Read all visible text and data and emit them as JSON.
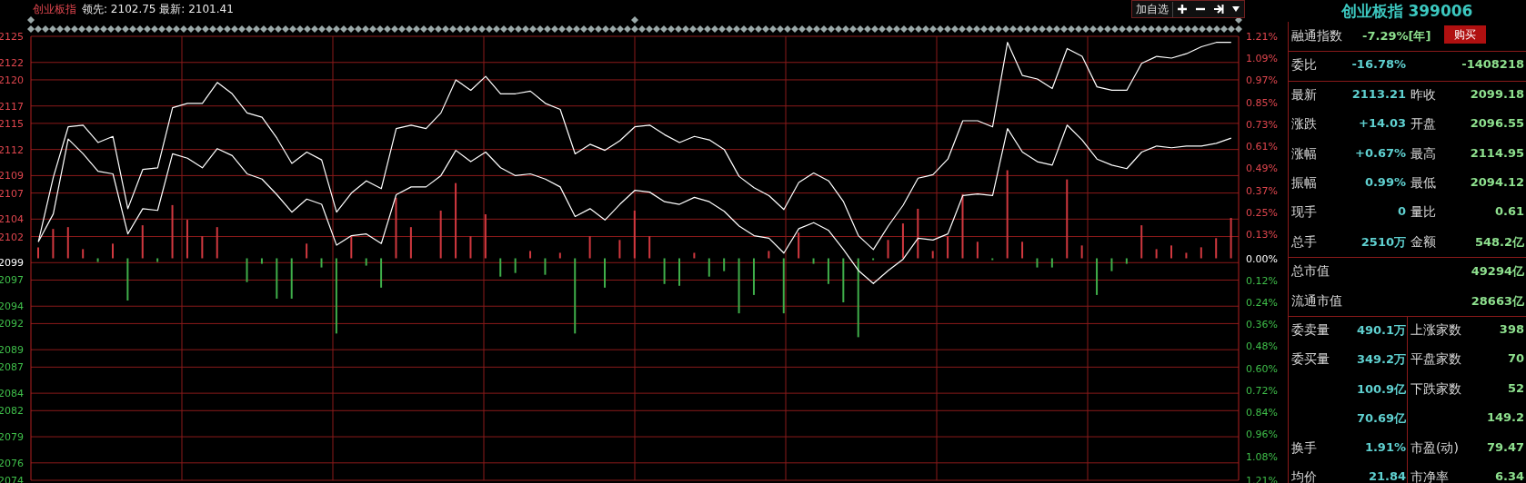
{
  "chart_data": [
    {
      "type": "line",
      "title": "创业板指",
      "subtitle": "领先: 2102.75 最新: 2101.41",
      "annotations": [
        "加自选"
      ],
      "categories": [
        null,
        null,
        null,
        null,
        null,
        null,
        null,
        null,
        null,
        null,
        null,
        null,
        null,
        null,
        null,
        null,
        null,
        null,
        null,
        null,
        null,
        null,
        null,
        null,
        null,
        null,
        null,
        null,
        null,
        null,
        null,
        null,
        null,
        null,
        null,
        null,
        null,
        null,
        null,
        null,
        null,
        null,
        null,
        null,
        null,
        null,
        null,
        null,
        null,
        null,
        null,
        null,
        null,
        null,
        null,
        null,
        null,
        null,
        null,
        null,
        null,
        null,
        null,
        null,
        null,
        null,
        null,
        null,
        null,
        null,
        null,
        null,
        null,
        null,
        null,
        null,
        null,
        null,
        null,
        null,
        null
      ],
      "series": [
        {
          "type": "line",
          "color": "#ffffff",
          "values": [
            2101.4,
            2108.8,
            2114.6,
            2114.8,
            2112.8,
            2113.5,
            2105.2,
            2109.7,
            2109.9,
            2116.8,
            2117.3,
            2117.3,
            2119.7,
            2118.4,
            2116.2,
            2115.7,
            2113.3,
            2110.4,
            2111.7,
            2110.8,
            2104.8,
            2107.0,
            2108.4,
            2107.5,
            2114.4,
            2114.8,
            2114.4,
            2116.2,
            2120.0,
            2118.8,
            2120.4,
            2118.4,
            2118.4,
            2118.7,
            2117.3,
            2116.6,
            2111.5,
            2112.6,
            2111.9,
            2113.0,
            2114.6,
            2114.8,
            2113.7,
            2112.8,
            2113.5,
            2113.1,
            2112.0,
            2108.9,
            2107.6,
            2106.7,
            2105.1,
            2108.2,
            2109.3,
            2108.4,
            2106.0,
            2102.1,
            2100.5,
            2103.2,
            2105.6,
            2108.7,
            2109.1,
            2110.9,
            2115.3,
            2115.3,
            2114.6,
            2124.3,
            2120.5,
            2120.1,
            2119.0,
            2123.6,
            2122.7,
            2119.2,
            2118.8,
            2118.8,
            2121.9,
            2122.7,
            2122.5,
            2123.0,
            2123.8,
            2124.3,
            2124.3
          ]
        },
        {
          "type": "line",
          "color": "#ffffff",
          "values": [
            2101.4,
            2104.6,
            2113.2,
            2111.5,
            2109.5,
            2109.2,
            2102.3,
            2105.2,
            2105.0,
            2111.5,
            2111.0,
            2109.9,
            2112.1,
            2111.3,
            2109.2,
            2108.6,
            2106.8,
            2104.8,
            2106.3,
            2105.7,
            2101.0,
            2102.1,
            2102.3,
            2101.2,
            2106.8,
            2107.7,
            2107.7,
            2109.0,
            2111.9,
            2110.6,
            2111.7,
            2109.9,
            2109.0,
            2109.2,
            2108.6,
            2107.7,
            2104.3,
            2105.2,
            2103.9,
            2105.7,
            2107.3,
            2107.1,
            2106.0,
            2105.7,
            2106.5,
            2106.0,
            2104.9,
            2103.2,
            2102.1,
            2101.8,
            2100.1,
            2102.9,
            2103.6,
            2102.7,
            2100.5,
            2098.1,
            2096.6,
            2098.1,
            2099.4,
            2101.8,
            2101.6,
            2102.3,
            2106.7,
            2106.9,
            2106.7,
            2114.4,
            2111.7,
            2110.6,
            2110.2,
            2114.8,
            2113.1,
            2110.9,
            2110.2,
            2109.8,
            2111.7,
            2112.4,
            2112.2,
            2112.4,
            2112.4,
            2112.7,
            2113.3
          ]
        },
        {
          "type": "bar",
          "axis": "y2",
          "values": [
            0.06,
            0.16,
            0.17,
            0.05,
            -0.02,
            0.08,
            -0.23,
            0.18,
            -0.02,
            0.29,
            0.21,
            0.12,
            0.17,
            null,
            -0.13,
            -0.03,
            -0.22,
            -0.22,
            0.08,
            -0.05,
            -0.41,
            0.12,
            -0.04,
            -0.16,
            0.33,
            0.17,
            null,
            0.26,
            0.41,
            0.12,
            0.24,
            -0.1,
            -0.08,
            0.04,
            -0.09,
            0.03,
            -0.41,
            0.12,
            -0.16,
            0.1,
            0.26,
            0.12,
            -0.14,
            -0.15,
            0.03,
            -0.1,
            -0.07,
            -0.3,
            -0.2,
            0.04,
            -0.3,
            0.14,
            -0.03,
            -0.14,
            -0.24,
            -0.43,
            -0.01,
            0.1,
            0.19,
            0.27,
            0.04,
            0.12,
            0.35,
            0.09,
            -0.01,
            0.48,
            0.09,
            -0.05,
            -0.05,
            0.43,
            0.07,
            -0.2,
            -0.07,
            -0.03,
            0.18,
            0.05,
            0.07,
            0.03,
            0.06,
            0.11,
            0.22
          ],
          "colors": [
            "#d0383f",
            "#d0383f",
            "#d0383f",
            "#d0383f",
            "#3fae4a",
            "#d0383f",
            "#3fae4a",
            "#d0383f",
            "#3fae4a",
            "#d0383f",
            "#d0383f",
            "#d0383f",
            "#d0383f",
            null,
            "#3fae4a",
            "#3fae4a",
            "#3fae4a",
            "#3fae4a",
            "#d0383f",
            "#3fae4a",
            "#3fae4a",
            "#d0383f",
            "#3fae4a",
            "#3fae4a",
            "#d0383f",
            "#d0383f",
            null,
            "#d0383f",
            "#d0383f",
            "#d0383f",
            "#d0383f",
            "#3fae4a",
            "#3fae4a",
            "#d0383f",
            "#3fae4a",
            "#d0383f",
            "#3fae4a",
            "#d0383f",
            "#3fae4a",
            "#d0383f",
            "#d0383f",
            "#d0383f",
            "#3fae4a",
            "#3fae4a",
            "#d0383f",
            "#3fae4a",
            "#3fae4a",
            "#3fae4a",
            "#3fae4a",
            "#d0383f",
            "#3fae4a",
            "#d0383f",
            "#3fae4a",
            "#3fae4a",
            "#3fae4a",
            "#3fae4a",
            "#3fae4a",
            "#d0383f",
            "#d0383f",
            "#d0383f",
            "#d0383f",
            "#d0383f",
            "#d0383f",
            "#d0383f",
            "#3fae4a",
            "#d0383f",
            "#d0383f",
            "#3fae4a",
            "#3fae4a",
            "#d0383f",
            "#d0383f",
            "#3fae4a",
            "#3fae4a",
            "#3fae4a",
            "#d0383f",
            "#d0383f",
            "#d0383f",
            "#d0383f",
            "#d0383f",
            "#d0383f",
            "#d0383f"
          ]
        }
      ],
      "ylim": [
        2074,
        2125
      ],
      "yticks": [
        2125,
        2122,
        2120,
        2117,
        2115,
        2112,
        2109,
        2107,
        2104,
        2102,
        2099,
        2097,
        2094,
        2092,
        2089,
        2087,
        2084,
        2082,
        2079,
        2076,
        2074
      ],
      "y2lim": [
        -1.21,
        1.21
      ],
      "y2ticks": [
        {
          "value": 1.21,
          "label": "1.21%"
        },
        {
          "value": 1.09,
          "label": "1.09%"
        },
        {
          "value": 0.97,
          "label": "0.97%"
        },
        {
          "value": 0.85,
          "label": "0.85%"
        },
        {
          "value": 0.73,
          "label": "0.73%"
        },
        {
          "value": 0.61,
          "label": "0.61%"
        },
        {
          "value": 0.49,
          "label": "0.49%"
        },
        {
          "value": 0.37,
          "label": "0.37%"
        },
        {
          "value": 0.25,
          "label": "0.25%"
        },
        {
          "value": 0.13,
          "label": "0.13%"
        },
        {
          "value": 0,
          "label": "0.00%"
        },
        {
          "value": -0.12,
          "label": "0.12%"
        },
        {
          "value": -0.24,
          "label": "0.24%"
        },
        {
          "value": -0.36,
          "label": "0.36%"
        },
        {
          "value": -0.48,
          "label": "0.48%"
        },
        {
          "value": -0.6,
          "label": "0.60%"
        },
        {
          "value": -0.72,
          "label": "0.72%"
        },
        {
          "value": -0.84,
          "label": "0.84%"
        },
        {
          "value": -0.96,
          "label": "0.96%"
        },
        {
          "value": -1.08,
          "label": "1.08%"
        },
        {
          "value": -1.21,
          "label": "1.21%"
        }
      ],
      "grid": true
    },
    {
      "type": "other",
      "title": "创业板指 399006",
      "annotations": [
        "融通指数",
        "-7.29%[年]",
        "购买",
        "委比",
        "-16.78%",
        "-1408218",
        "最新",
        "2113.21",
        "昨收",
        "2099.18",
        "涨跌",
        "+14.03",
        "开盘",
        "2096.55",
        "涨幅",
        "+0.67%",
        "最高",
        "2114.95",
        "振幅",
        "0.99%",
        "最低",
        "2094.12",
        "现手",
        "0",
        "量比",
        "0.61",
        "总手",
        "2510万",
        "金额",
        "548.2亿",
        "总市值",
        "49294亿",
        "流通市值",
        "28663亿",
        "委卖量",
        "490.1万",
        "上涨家数",
        "398",
        "委买量",
        "349.2万",
        "平盘家数",
        "70",
        "100.9亿",
        "下跌家数",
        "52",
        "70.69亿",
        "149.2",
        "换手",
        "1.91%",
        "市盈(动)",
        "79.47",
        "均价",
        "21.84",
        "市净率",
        "6.34"
      ]
    }
  ]
}
